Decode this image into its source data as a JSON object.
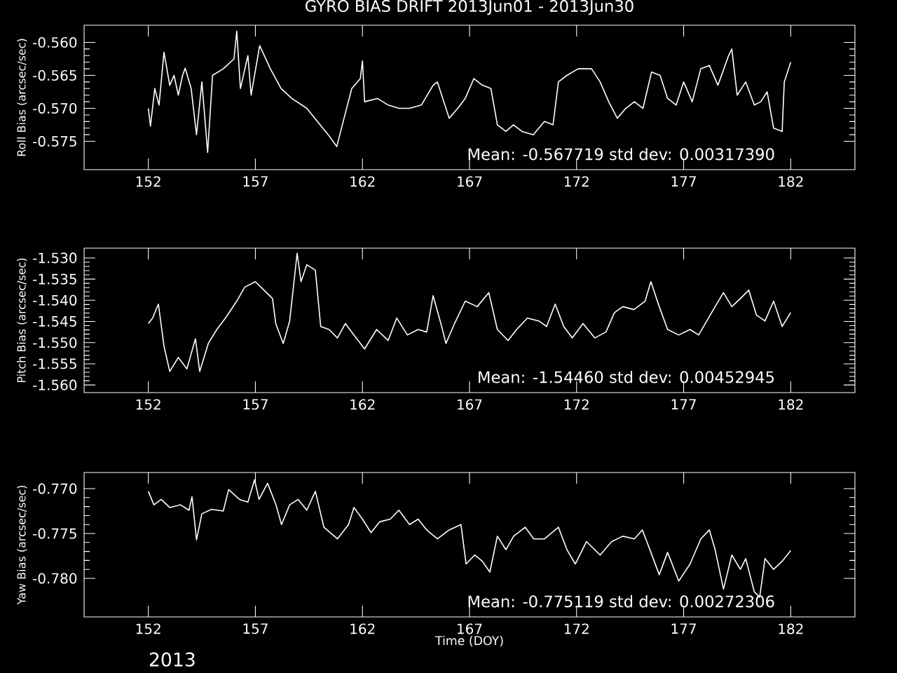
{
  "chart_data": [
    {
      "type": "line",
      "title": "GYRO BIAS DRIFT 2013Jun01 - 2013Jun30",
      "ylabel": "Roll Bias (arcsec/sec)",
      "xlim": [
        149,
        185
      ],
      "xticks": [
        152,
        157,
        162,
        167,
        172,
        177,
        182
      ],
      "ylim": [
        -0.5793,
        -0.5574
      ],
      "yticks": [
        -0.575,
        {
          "value": -0.57,
          "label": "-0.570"
        },
        -0.565,
        {
          "value": -0.56,
          "label": "-0.560"
        }
      ],
      "annotations": [
        "Mean: -0.567719 std dev: 0.00317390"
      ],
      "series": [
        {
          "color": "#ffffff",
          "x": [
            152.0,
            152.1,
            152.3,
            152.5,
            152.73,
            153.0,
            153.2,
            153.4,
            153.6,
            153.72,
            154.0,
            154.25,
            154.5,
            154.77,
            155.0,
            155.5,
            156.0,
            156.13,
            156.3,
            156.65,
            156.8,
            157.2,
            157.7,
            158.2,
            158.7,
            159.4,
            159.9,
            160.4,
            160.8,
            161.1,
            161.5,
            161.9,
            162.0,
            162.1,
            162.7,
            163.2,
            163.7,
            164.2,
            164.75,
            165.3,
            165.5,
            166.05,
            166.45,
            166.8,
            167.2,
            167.6,
            168.0,
            168.3,
            168.7,
            169.05,
            169.45,
            169.98,
            170.5,
            170.9,
            171.15,
            171.55,
            172.07,
            172.7,
            173.1,
            173.5,
            173.9,
            174.3,
            174.7,
            175.1,
            175.5,
            175.9,
            176.25,
            176.65,
            177.0,
            177.4,
            177.8,
            178.2,
            178.6,
            179.1,
            179.25,
            179.5,
            179.9,
            180.3,
            180.6,
            180.9,
            181.2,
            181.6,
            181.7,
            182.0
          ],
          "values": [
            -0.57,
            -0.5727,
            -0.567,
            -0.5695,
            -0.5615,
            -0.5665,
            -0.565,
            -0.568,
            -0.565,
            -0.5639,
            -0.567,
            -0.574,
            -0.566,
            -0.5767,
            -0.565,
            -0.564,
            -0.5625,
            -0.5583,
            -0.567,
            -0.562,
            -0.568,
            -0.5605,
            -0.564,
            -0.567,
            -0.5685,
            -0.57,
            -0.572,
            -0.574,
            -0.5758,
            -0.572,
            -0.567,
            -0.5655,
            -0.5628,
            -0.569,
            -0.5685,
            -0.5695,
            -0.57,
            -0.57,
            -0.5695,
            -0.5665,
            -0.566,
            -0.5715,
            -0.57,
            -0.5685,
            -0.5655,
            -0.5665,
            -0.567,
            -0.5725,
            -0.5735,
            -0.5725,
            -0.5735,
            -0.574,
            -0.572,
            -0.5725,
            -0.566,
            -0.565,
            -0.564,
            -0.564,
            -0.566,
            -0.569,
            -0.5715,
            -0.57,
            -0.569,
            -0.57,
            -0.5645,
            -0.565,
            -0.5685,
            -0.5695,
            -0.566,
            -0.569,
            -0.564,
            -0.5635,
            -0.5665,
            -0.562,
            -0.561,
            -0.568,
            -0.566,
            -0.5695,
            -0.569,
            -0.5675,
            -0.573,
            -0.5735,
            -0.566,
            -0.563
          ]
        }
      ]
    },
    {
      "type": "line",
      "ylabel": "Pitch Bias (arcsec/sec)",
      "xlim": [
        149,
        185
      ],
      "xticks": [
        152,
        157,
        162,
        167,
        172,
        177,
        182
      ],
      "ylim": [
        -1.5618,
        -1.5277
      ],
      "yticks": [
        {
          "value": -1.56,
          "label": "-1.560"
        },
        -1.555,
        {
          "value": -1.55,
          "label": "-1.550"
        },
        -1.545,
        {
          "value": -1.54,
          "label": "-1.540"
        },
        -1.535,
        {
          "value": -1.53,
          "label": "-1.530"
        }
      ],
      "annotations": [
        "Mean: -1.54460 std dev: 0.00452945"
      ],
      "series": [
        {
          "color": "#ffffff",
          "x": [
            152.0,
            152.2,
            152.47,
            152.73,
            153.0,
            153.4,
            153.8,
            154.2,
            154.4,
            154.8,
            155.2,
            155.6,
            156.13,
            156.5,
            157.0,
            157.4,
            157.8,
            157.95,
            158.3,
            158.6,
            158.95,
            159.13,
            159.4,
            159.8,
            160.05,
            160.44,
            160.83,
            161.2,
            161.6,
            162.1,
            162.66,
            163.2,
            163.6,
            164.1,
            164.6,
            165.0,
            165.3,
            165.7,
            165.9,
            166.3,
            166.8,
            167.36,
            167.9,
            168.3,
            168.8,
            169.2,
            169.7,
            170.24,
            170.6,
            171.0,
            171.4,
            171.8,
            172.3,
            172.85,
            173.37,
            173.77,
            174.16,
            174.68,
            175.2,
            175.47,
            175.86,
            176.25,
            176.77,
            177.3,
            177.7,
            178.08,
            178.47,
            178.86,
            179.25,
            179.65,
            180.04,
            180.4,
            180.8,
            181.2,
            181.6,
            182.0
          ],
          "values": [
            -1.5455,
            -1.5442,
            -1.5409,
            -1.5508,
            -1.5568,
            -1.5535,
            -1.5562,
            -1.5491,
            -1.5568,
            -1.5502,
            -1.5469,
            -1.5442,
            -1.5402,
            -1.5369,
            -1.5356,
            -1.5376,
            -1.5396,
            -1.5455,
            -1.5502,
            -1.5449,
            -1.5289,
            -1.5356,
            -1.5316,
            -1.5329,
            -1.5462,
            -1.5469,
            -1.5489,
            -1.5455,
            -1.5482,
            -1.5515,
            -1.5469,
            -1.5495,
            -1.5442,
            -1.5482,
            -1.5469,
            -1.5475,
            -1.5389,
            -1.5462,
            -1.5502,
            -1.5455,
            -1.5402,
            -1.5415,
            -1.5382,
            -1.5469,
            -1.5495,
            -1.5469,
            -1.5442,
            -1.5449,
            -1.5462,
            -1.5409,
            -1.5462,
            -1.5489,
            -1.5455,
            -1.5489,
            -1.5475,
            -1.5429,
            -1.5415,
            -1.5422,
            -1.5402,
            -1.5356,
            -1.5415,
            -1.5469,
            -1.5482,
            -1.5469,
            -1.5482,
            -1.5449,
            -1.5415,
            -1.5382,
            -1.5415,
            -1.5396,
            -1.5376,
            -1.5435,
            -1.5449,
            -1.5402,
            -1.5462,
            -1.5429
          ]
        }
      ]
    },
    {
      "type": "line",
      "xlabel": "Time (DOY)",
      "ylabel": "Yaw Bias (arcsec/sec)",
      "xlim": [
        149,
        185
      ],
      "xticks": [
        152,
        157,
        162,
        167,
        172,
        177,
        182
      ],
      "ylim": [
        -0.7843,
        -0.7682
      ],
      "yticks": [
        {
          "value": -0.78,
          "label": "-0.780"
        },
        -0.775,
        {
          "value": -0.77,
          "label": "-0.770"
        }
      ],
      "annotations": [
        "Mean: -0.775119 std dev: 0.00272306",
        "2013"
      ],
      "series": [
        {
          "color": "#ffffff",
          "x": [
            152.0,
            152.26,
            152.6,
            153.0,
            153.5,
            153.9,
            154.04,
            154.25,
            154.5,
            154.95,
            155.5,
            155.75,
            156.26,
            156.65,
            156.96,
            157.17,
            157.57,
            157.96,
            158.22,
            158.6,
            159.0,
            159.4,
            159.8,
            160.2,
            160.83,
            161.35,
            161.6,
            162.0,
            162.4,
            162.8,
            163.3,
            163.7,
            164.2,
            164.6,
            165.0,
            165.5,
            166.05,
            166.6,
            166.84,
            167.24,
            167.6,
            167.95,
            168.3,
            168.7,
            169.06,
            169.6,
            170.0,
            170.5,
            171.15,
            171.55,
            171.94,
            172.46,
            173.1,
            173.64,
            174.16,
            174.7,
            175.07,
            175.47,
            175.86,
            176.25,
            176.77,
            177.3,
            177.8,
            178.2,
            178.47,
            178.86,
            179.25,
            179.65,
            179.9,
            180.3,
            180.55,
            180.8,
            181.2,
            181.6,
            182.0
          ],
          "values": [
            -0.7703,
            -0.7718,
            -0.7712,
            -0.7721,
            -0.7718,
            -0.7724,
            -0.7709,
            -0.7757,
            -0.7728,
            -0.7723,
            -0.7725,
            -0.7701,
            -0.7712,
            -0.7715,
            -0.769,
            -0.7712,
            -0.7694,
            -0.7718,
            -0.774,
            -0.7718,
            -0.7712,
            -0.7724,
            -0.7703,
            -0.7743,
            -0.7756,
            -0.774,
            -0.7721,
            -0.7734,
            -0.7749,
            -0.7737,
            -0.7734,
            -0.7724,
            -0.774,
            -0.7734,
            -0.7746,
            -0.7756,
            -0.7746,
            -0.774,
            -0.7784,
            -0.7774,
            -0.7781,
            -0.7793,
            -0.7753,
            -0.7768,
            -0.7753,
            -0.7743,
            -0.7756,
            -0.7756,
            -0.7743,
            -0.7768,
            -0.7784,
            -0.7759,
            -0.7774,
            -0.7759,
            -0.7753,
            -0.7756,
            -0.7746,
            -0.7771,
            -0.7796,
            -0.7771,
            -0.7803,
            -0.7784,
            -0.7756,
            -0.7746,
            -0.7768,
            -0.7812,
            -0.7774,
            -0.779,
            -0.7778,
            -0.7815,
            -0.7821,
            -0.7778,
            -0.779,
            -0.7781,
            -0.7769
          ]
        }
      ]
    }
  ]
}
